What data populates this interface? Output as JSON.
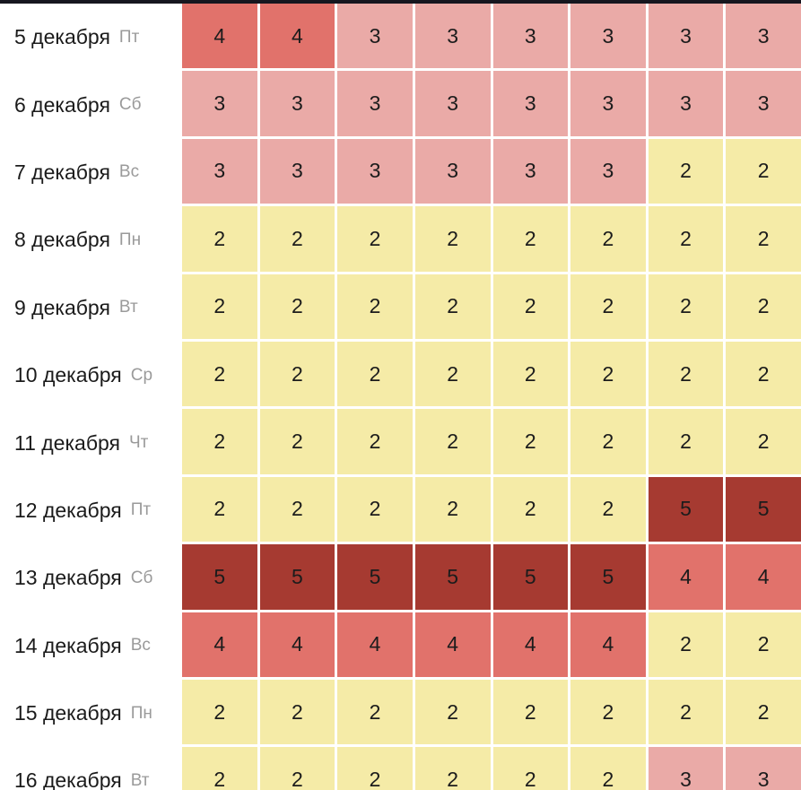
{
  "page": {
    "title": "december-price-level-calendar",
    "top_bar_color": "#16161f"
  },
  "colors": {
    "background": "#ffffff",
    "grid_gap": "#ffffff",
    "date_text": "#1b1b1b",
    "weekday_text": "#9a9a9a",
    "cell_text": "#1c1c1c"
  },
  "chart_data": {
    "type": "heatmap",
    "columns": 8,
    "value_color_map": {
      "2": "#f5eba7",
      "3": "#eaaaa7",
      "4": "#e1726b",
      "5": "#a63a31"
    },
    "rows": [
      {
        "date": "5 декабря",
        "day": "Пт",
        "values": [
          4,
          4,
          3,
          3,
          3,
          3,
          3,
          3
        ]
      },
      {
        "date": "6 декабря",
        "day": "Сб",
        "values": [
          3,
          3,
          3,
          3,
          3,
          3,
          3,
          3
        ]
      },
      {
        "date": "7 декабря",
        "day": "Вс",
        "values": [
          3,
          3,
          3,
          3,
          3,
          3,
          2,
          2
        ]
      },
      {
        "date": "8 декабря",
        "day": "Пн",
        "values": [
          2,
          2,
          2,
          2,
          2,
          2,
          2,
          2
        ]
      },
      {
        "date": "9 декабря",
        "day": "Вт",
        "values": [
          2,
          2,
          2,
          2,
          2,
          2,
          2,
          2
        ]
      },
      {
        "date": "10 декабря",
        "day": "Ср",
        "values": [
          2,
          2,
          2,
          2,
          2,
          2,
          2,
          2
        ]
      },
      {
        "date": "11 декабря",
        "day": "Чт",
        "values": [
          2,
          2,
          2,
          2,
          2,
          2,
          2,
          2
        ]
      },
      {
        "date": "12 декабря",
        "day": "Пт",
        "values": [
          2,
          2,
          2,
          2,
          2,
          2,
          5,
          5
        ]
      },
      {
        "date": "13 декабря",
        "day": "Сб",
        "values": [
          5,
          5,
          5,
          5,
          5,
          5,
          4,
          4
        ]
      },
      {
        "date": "14 декабря",
        "day": "Вс",
        "values": [
          4,
          4,
          4,
          4,
          4,
          4,
          2,
          2
        ]
      },
      {
        "date": "15 декабря",
        "day": "Пн",
        "values": [
          2,
          2,
          2,
          2,
          2,
          2,
          2,
          2
        ]
      },
      {
        "date": "16 декабря",
        "day": "Вт",
        "values": [
          2,
          2,
          2,
          2,
          2,
          2,
          3,
          3
        ]
      }
    ]
  }
}
